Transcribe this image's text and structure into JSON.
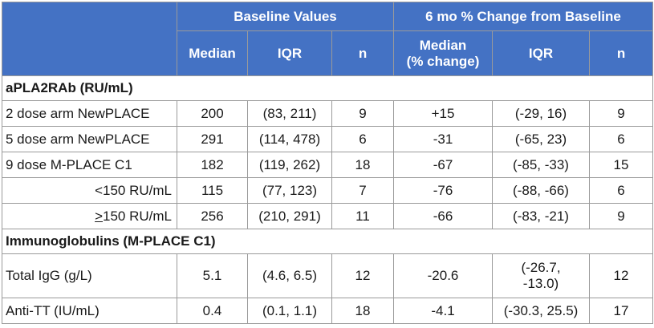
{
  "header": {
    "group_baseline": "Baseline Values",
    "group_change": "6 mo % Change from Baseline",
    "cols": {
      "b_median": "Median",
      "b_iqr": "IQR",
      "b_n": "n",
      "c_median_line1": "Median",
      "c_median_line2": "(% change)",
      "c_iqr": "IQR",
      "c_n": "n"
    }
  },
  "sections": [
    {
      "title": "aPLA2RAb (RU/mL)",
      "rows": [
        {
          "label": "2 dose arm NewPLACE",
          "b_median": "200",
          "b_iqr": "(83, 211)",
          "b_n": "9",
          "c_median": "+15",
          "c_iqr": "(-29, 16)",
          "c_n": "9"
        },
        {
          "label": "5 dose arm NewPLACE",
          "b_median": "291",
          "b_iqr": "(114, 478)",
          "b_n": "6",
          "c_median": "-31",
          "c_iqr": "(-65, 23)",
          "c_n": "6"
        },
        {
          "label": "9 dose M-PLACE C1",
          "b_median": "182",
          "b_iqr": "(119, 262)",
          "b_n": "18",
          "c_median": "-67",
          "c_iqr": "(-85, -33)",
          "c_n": "15"
        },
        {
          "label": "<150 RU/mL",
          "b_median": "115",
          "b_iqr": "(77, 123)",
          "b_n": "7",
          "c_median": "-76",
          "c_iqr": "(-88, -66)",
          "c_n": "6"
        },
        {
          "label_symbol": ">",
          "label_rest": "150 RU/mL",
          "b_median": "256",
          "b_iqr": "(210, 291)",
          "b_n": "11",
          "c_median": "-66",
          "c_iqr": "(-83, -21)",
          "c_n": "9"
        }
      ]
    },
    {
      "title": "Immunoglobulins (M-PLACE C1)",
      "rows": [
        {
          "label": "Total IgG (g/L)",
          "b_median": "5.1",
          "b_iqr": "(4.6, 6.5)",
          "b_n": "12",
          "c_median": "-20.6",
          "c_iqr_line1": "(-26.7,",
          "c_iqr_line2": "-13.0)",
          "c_n": "12"
        },
        {
          "label": "Anti-TT (IU/mL)",
          "b_median": "0.4",
          "b_iqr": "(0.1, 1.1)",
          "b_n": "18",
          "c_median": "-4.1",
          "c_iqr": "(-30.3, 25.5)",
          "c_n": "17"
        }
      ]
    }
  ]
}
